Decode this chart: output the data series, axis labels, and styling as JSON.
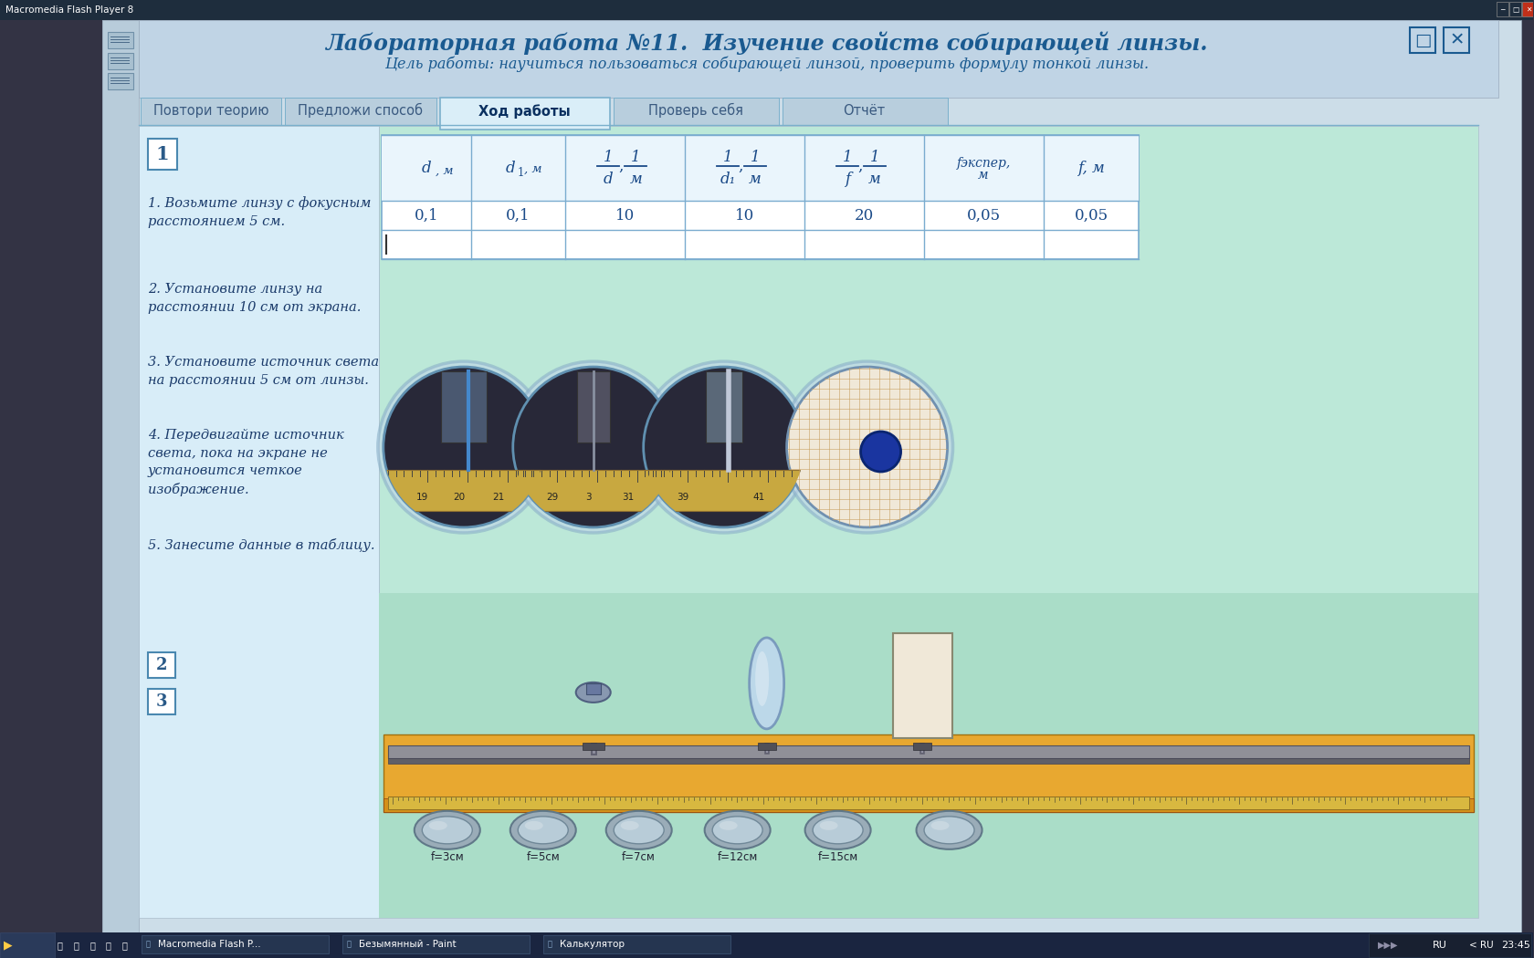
{
  "title": "Лабораторная работа №11.  Изучение свойств собирающей линзы.",
  "subtitle": "Цель работы: научиться пользоваться собирающей линзой, проверить формулу тонкой линзы.",
  "tabs": [
    "Повтори теорию",
    "Предложи способ",
    "Ход работы",
    "Проверь себя",
    "Отчёт"
  ],
  "active_tab": 2,
  "title_color": "#1a5a90",
  "table_row1": [
    "0,1",
    "0,1",
    "10",
    "10",
    "20",
    "0,05",
    "0,05"
  ],
  "steps": [
    "1. Возьмите линзу с фокусным\nрасстоянием 5 см.",
    "2. Установите линзу на\nрасстоянии 10 см от экрана.",
    "3. Установите источник света\nна расстоянии 5 см от линзы.",
    "4. Передвигайте источник\nсвета, пока на экране не\nустановится четкое\nизображение.",
    "5. Занесите данные в таблицу."
  ],
  "lens_labels": [
    "f=3см",
    "f=5см",
    "f=7см",
    "f=12см",
    "f=15см"
  ],
  "win_bar_color": "#1e2d3d",
  "main_bg": "#ccdde8",
  "header_bg": "#c0d4e5",
  "content_bg_left": "#cfe6f5",
  "content_bg_right": "#c5e8d8",
  "tab_inactive_bg": "#b8cedd",
  "tab_active_bg": "#daeef8",
  "table_bg": "#f0f8ff",
  "taskbar_bg": "#1a2540",
  "taskbar_btn_bg": "#2a3a5a",
  "bench_color": "#d4901a",
  "bench_top_color": "#e8a830",
  "ruler_color": "#c8a830",
  "rail_color": "#888898",
  "lens_base_color": "#9aacb8",
  "blue_dot_color": "#1a35a0"
}
